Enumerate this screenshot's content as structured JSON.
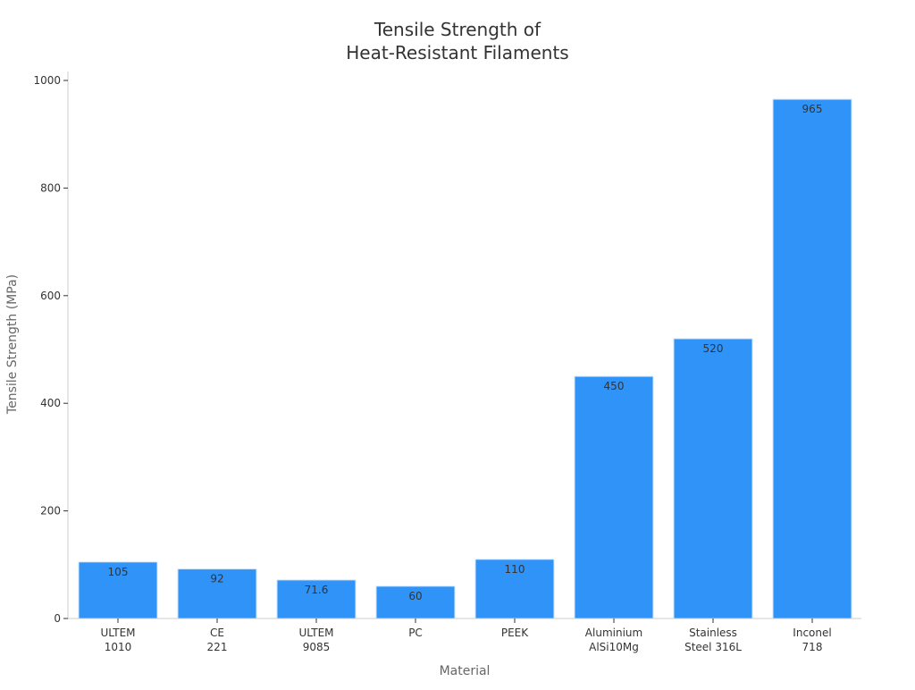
{
  "chart_data": {
    "type": "bar",
    "title_lines": [
      "Tensile Strength of",
      "Heat-Resistant Filaments"
    ],
    "xlabel": "Material",
    "ylabel": "Tensile Strength (MPa)",
    "categories": [
      [
        "ULTEM",
        "1010"
      ],
      [
        "CE",
        "221"
      ],
      [
        "ULTEM",
        "9085"
      ],
      [
        "PC"
      ],
      [
        "PEEK"
      ],
      [
        "Aluminium",
        "AlSi10Mg"
      ],
      [
        "Stainless",
        "Steel 316L"
      ],
      [
        "Inconel",
        "718"
      ]
    ],
    "values": [
      105,
      92,
      71.6,
      60,
      110,
      450,
      520,
      965
    ],
    "data_labels": [
      "105",
      "92",
      "71.6",
      "60",
      "110",
      "450",
      "520",
      "965"
    ],
    "ylim": [
      0,
      1000
    ],
    "yticks": [
      0,
      200,
      400,
      600,
      800,
      1000
    ],
    "grid": false,
    "legend": "none",
    "colors": {
      "bar": "#2F93F8",
      "bar_edge": "#CFE6FD",
      "axis": "#CCCCCC",
      "text": "#333333",
      "label": "#666666"
    }
  }
}
